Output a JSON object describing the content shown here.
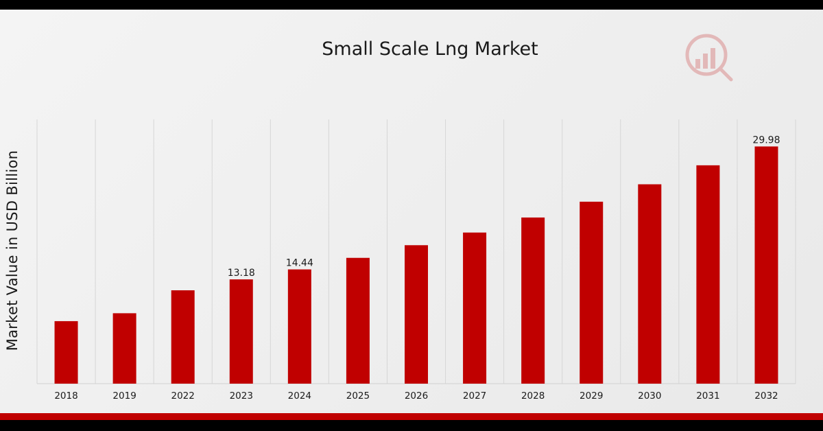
{
  "chart_data": {
    "type": "bar",
    "title": "Small Scale Lng Market",
    "xlabel": "",
    "ylabel": "Market Value in USD Billion",
    "categories": [
      "2018",
      "2019",
      "2022",
      "2023",
      "2024",
      "2025",
      "2026",
      "2027",
      "2028",
      "2029",
      "2030",
      "2031",
      "2032"
    ],
    "values": [
      7.9,
      8.9,
      11.8,
      13.18,
      14.44,
      15.9,
      17.5,
      19.1,
      21.0,
      23.0,
      25.2,
      27.6,
      29.98
    ],
    "data_labels": {
      "2023": "13.18",
      "2024": "14.44",
      "2032": "29.98"
    },
    "ylim": [
      0,
      33.4
    ],
    "grid": "vertical",
    "legend": "none",
    "bar_color": "#c00000"
  },
  "logo": {
    "icon": "magnifier-bar-chart-icon",
    "color": "#c00000"
  }
}
